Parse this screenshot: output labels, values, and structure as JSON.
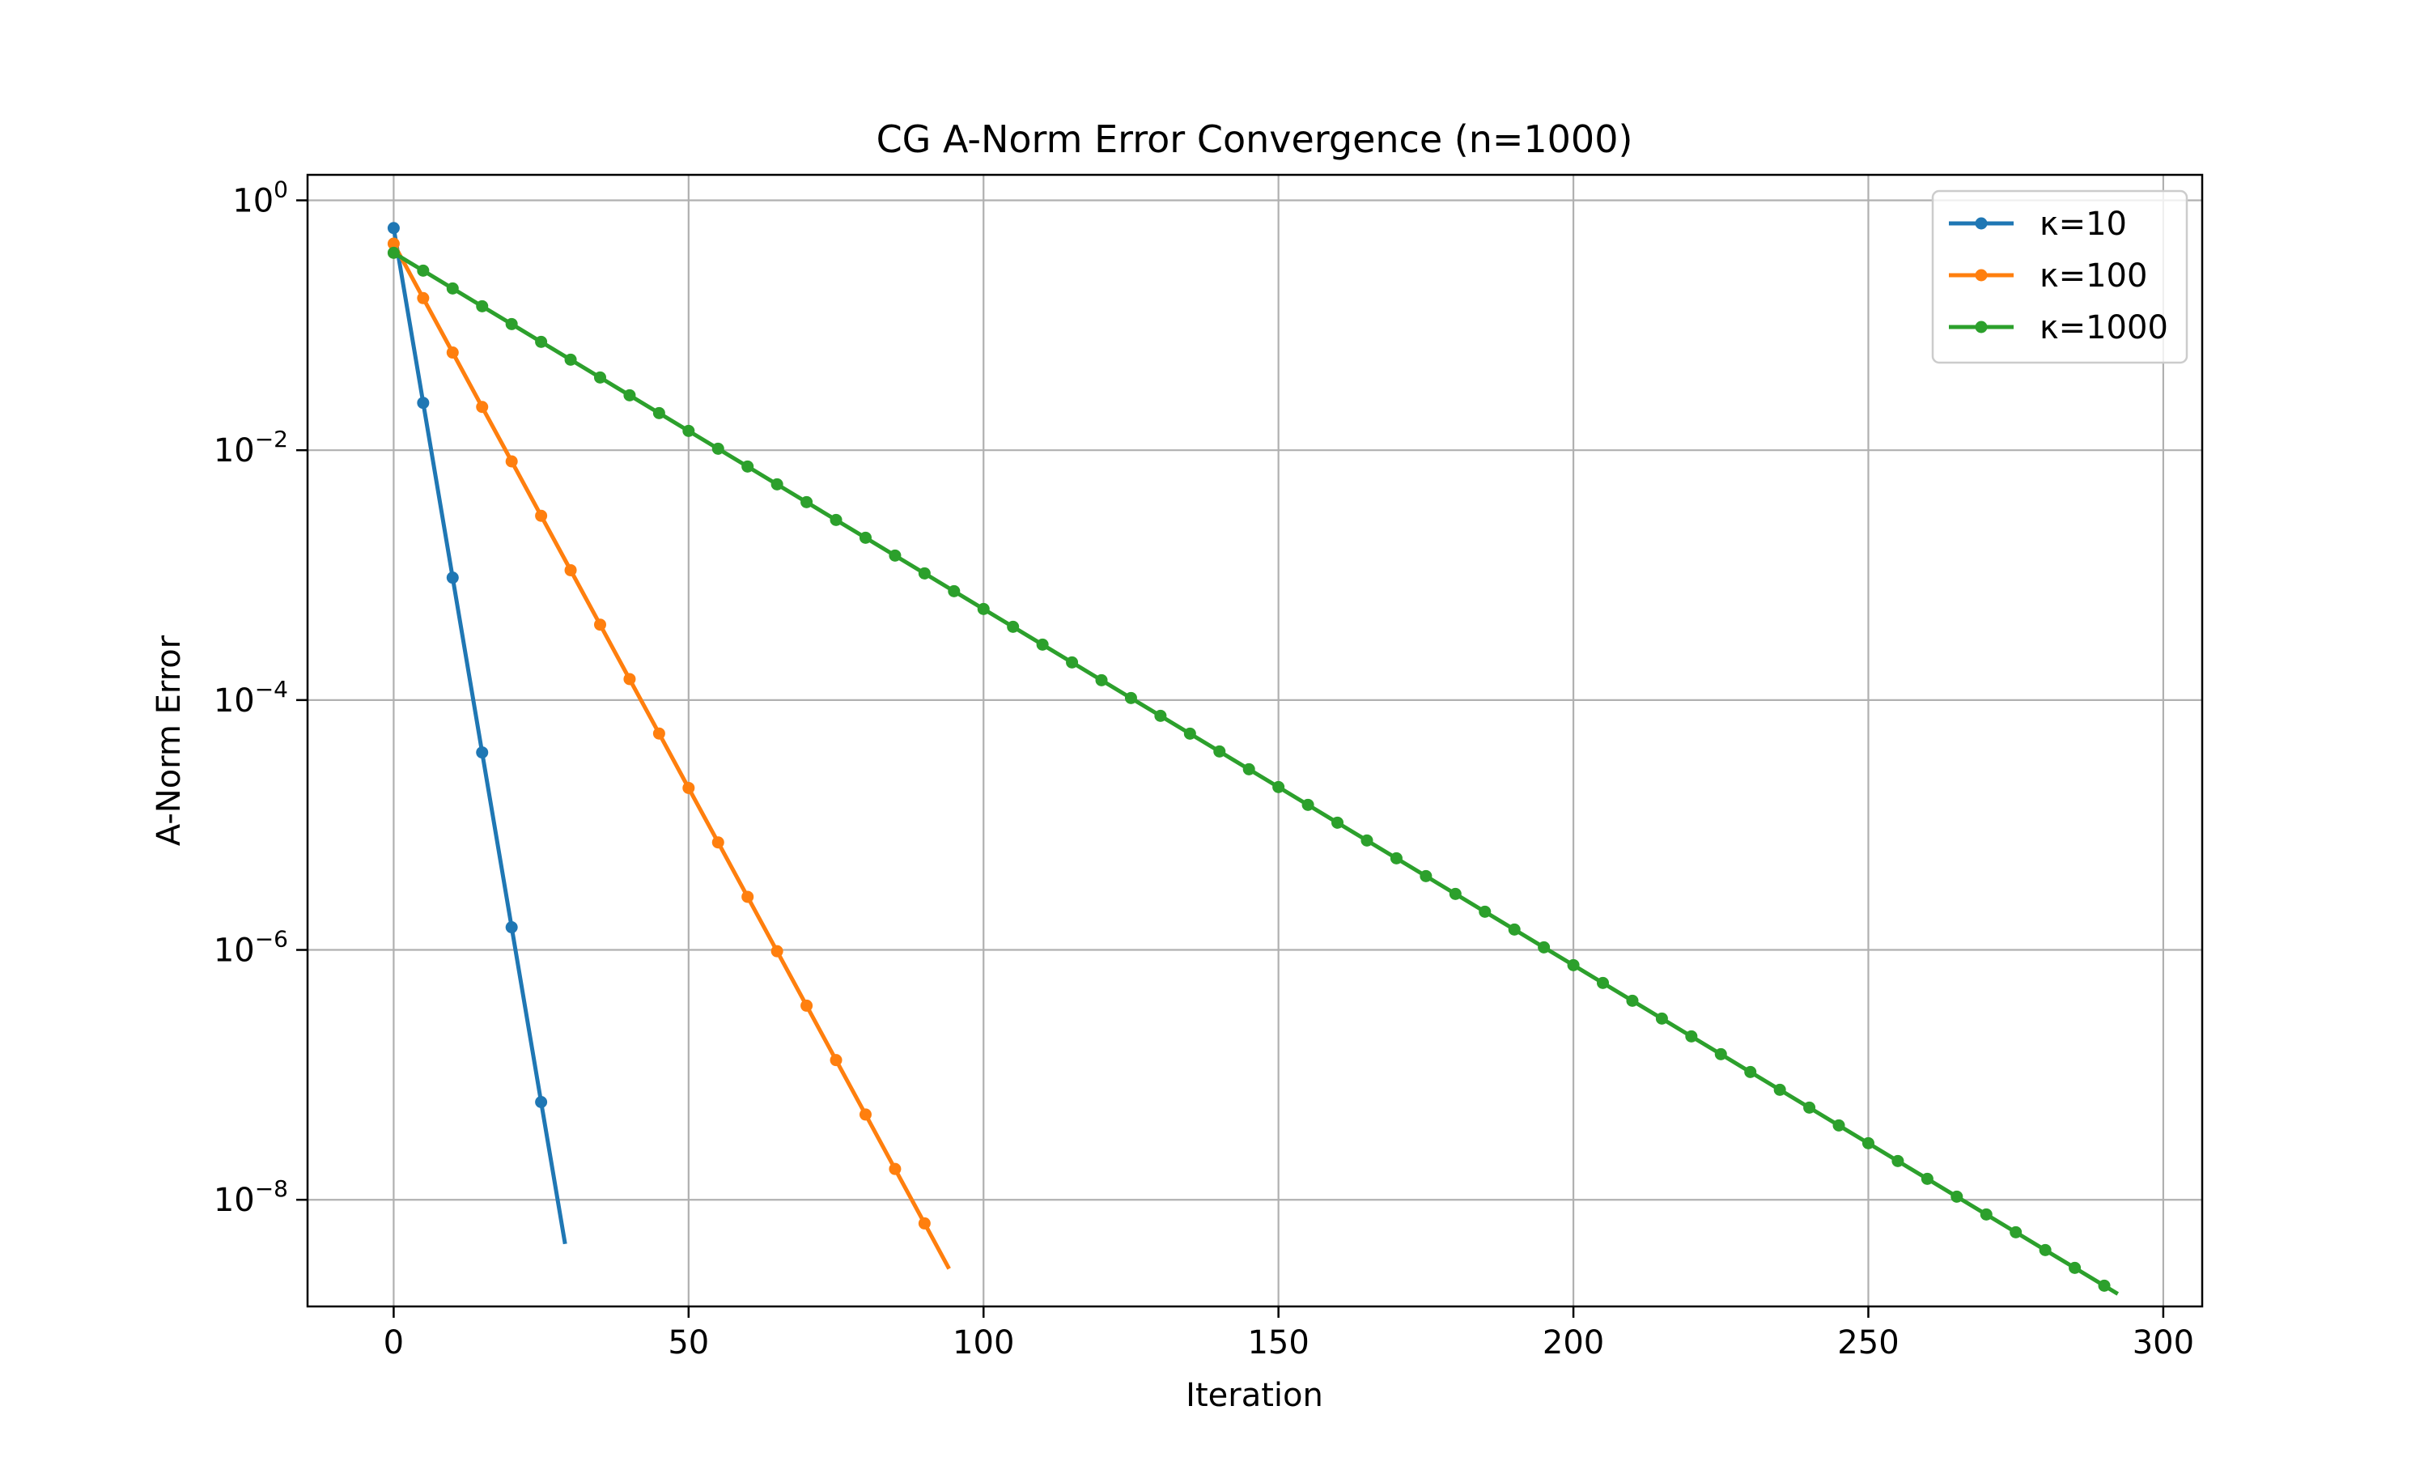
{
  "chart_data": {
    "type": "line",
    "title": "CG A-Norm Error Convergence (n=1000)",
    "xlabel": "Iteration",
    "ylabel": "A-Norm Error",
    "xlim": [
      -14.6,
      306.6
    ],
    "ylim": [
      1.4e-09,
      1.6
    ],
    "yscale": "log",
    "grid": true,
    "legend_position": "top-right",
    "x_ticks": [
      0,
      50,
      100,
      150,
      200,
      250,
      300
    ],
    "y_ticks": [
      {
        "value": 1,
        "base": "10",
        "exp": "0"
      },
      {
        "value": 0.01,
        "base": "10",
        "exp": "−2"
      },
      {
        "value": 0.0001,
        "base": "10",
        "exp": "−4"
      },
      {
        "value": 1e-06,
        "base": "10",
        "exp": "−6"
      },
      {
        "value": 1e-08,
        "base": "10",
        "exp": "−8"
      }
    ],
    "series": [
      {
        "name": "κ=10",
        "color": "#1f77b4",
        "marker_x": [
          0,
          5,
          10,
          15,
          20,
          25
        ],
        "x0": 0,
        "y0": 0.6,
        "x_end": 29,
        "y_end": 4.6e-09
      },
      {
        "name": "κ=100",
        "color": "#ff7f0e",
        "marker_x": [
          0,
          5,
          10,
          15,
          20,
          25,
          30,
          35,
          40,
          45,
          50,
          55,
          60,
          65,
          70,
          75,
          80,
          85,
          90
        ],
        "x0": 0,
        "y0": 0.45,
        "x_end": 94,
        "y_end": 2.9e-09
      },
      {
        "name": "κ=1000",
        "color": "#2ca02c",
        "marker_x": [
          0,
          5,
          10,
          15,
          20,
          25,
          30,
          35,
          40,
          45,
          50,
          55,
          60,
          65,
          70,
          75,
          80,
          85,
          90,
          95,
          100,
          105,
          110,
          115,
          120,
          125,
          130,
          135,
          140,
          145,
          150,
          155,
          160,
          165,
          170,
          175,
          180,
          185,
          190,
          195,
          200,
          205,
          210,
          215,
          220,
          225,
          230,
          235,
          240,
          245,
          250,
          255,
          260,
          265,
          270,
          275,
          280,
          285,
          290
        ],
        "x0": 0,
        "y0": 0.38,
        "x_end": 292,
        "y_end": 1.8e-09
      }
    ]
  }
}
